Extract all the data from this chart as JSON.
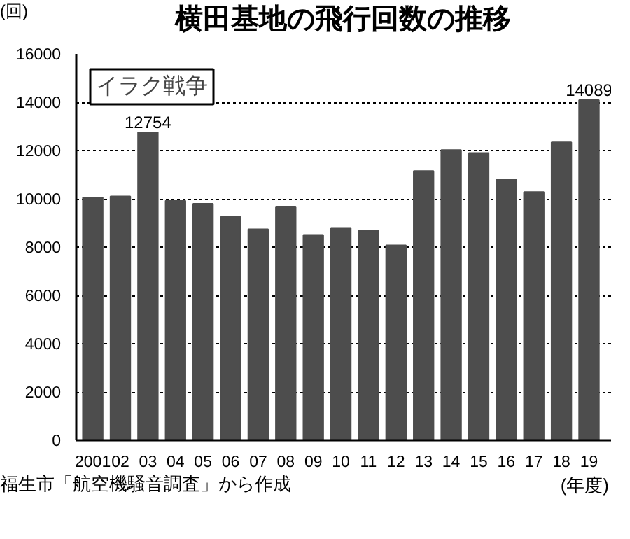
{
  "chart_data": {
    "type": "bar",
    "title": "横田基地の飛行回数の推移",
    "ylabel": "(回)",
    "xlabel": "(年度)",
    "categories": [
      "2001",
      "02",
      "03",
      "04",
      "05",
      "06",
      "07",
      "08",
      "09",
      "10",
      "11",
      "12",
      "13",
      "14",
      "15",
      "16",
      "17",
      "18",
      "19"
    ],
    "values": [
      10050,
      10100,
      12754,
      9920,
      9800,
      9250,
      8740,
      9680,
      8510,
      8800,
      8690,
      8070,
      11150,
      12020,
      11900,
      10790,
      10280,
      12340,
      14089
    ],
    "value_labels": [
      null,
      null,
      "12754",
      null,
      null,
      null,
      null,
      null,
      null,
      null,
      null,
      null,
      null,
      null,
      null,
      null,
      null,
      null,
      "14089"
    ],
    "color": "#4d4d4d",
    "ylim": [
      0,
      16000
    ],
    "yticks": [
      0,
      2000,
      4000,
      6000,
      8000,
      10000,
      12000,
      14000,
      16000
    ],
    "grid": "y",
    "annotations": [
      "イラク戦争",
      "福生市「航空機騒音調査」から作成"
    ]
  }
}
